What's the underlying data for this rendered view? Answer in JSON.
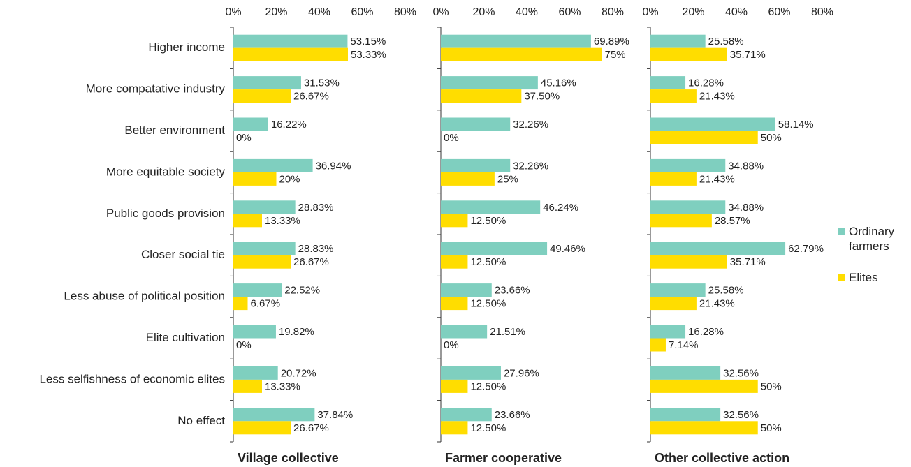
{
  "chart_data": [
    {
      "type": "bar",
      "orientation": "horizontal",
      "title": "Village collective",
      "categories": [
        "Higher income",
        "More compatative industry",
        "Better environment",
        "More equitable society",
        "Public goods provision",
        "Closer social tie",
        "Less abuse of political position",
        "Elite cultivation",
        "Less selfishness of economic elites",
        "No effect"
      ],
      "xlim": [
        0,
        80
      ],
      "xticks": [
        {
          "value": 0,
          "label": "0%"
        },
        {
          "value": 20,
          "label": "20%"
        },
        {
          "value": 40,
          "label": "40%"
        },
        {
          "value": 60,
          "label": "60%"
        },
        {
          "value": 80,
          "label": "80%"
        }
      ],
      "series": [
        {
          "name": "Ordinary farmers",
          "color": "#7fcfbf",
          "values": [
            53.15,
            31.53,
            16.22,
            36.94,
            28.83,
            28.83,
            22.52,
            19.82,
            20.72,
            37.84
          ],
          "value_labels": [
            "53.15%",
            "31.53%",
            "16.22%",
            "36.94%",
            "28.83%",
            "28.83%",
            "22.52%",
            "19.82%",
            "20.72%",
            "37.84%"
          ]
        },
        {
          "name": "Elites",
          "color": "#ffdd00",
          "values": [
            53.33,
            26.67,
            0,
            20,
            13.33,
            26.67,
            6.67,
            0,
            13.33,
            26.67
          ],
          "value_labels": [
            "53.33%",
            "26.67%",
            "0%",
            "20%",
            "13.33%",
            "26.67%",
            "6.67%",
            "0%",
            "13.33%",
            "26.67%"
          ]
        }
      ]
    },
    {
      "type": "bar",
      "orientation": "horizontal",
      "title": "Farmer cooperative",
      "xlim": [
        0,
        80
      ],
      "xticks": [
        {
          "value": 0,
          "label": "0%"
        },
        {
          "value": 20,
          "label": "20%"
        },
        {
          "value": 40,
          "label": "40%"
        },
        {
          "value": 60,
          "label": "60%"
        },
        {
          "value": 80,
          "label": "80%"
        }
      ],
      "series": [
        {
          "color": "#7fcfbf",
          "values": [
            69.89,
            45.16,
            32.26,
            32.26,
            46.24,
            49.46,
            23.66,
            21.51,
            27.96,
            23.66
          ],
          "value_labels": [
            "69.89%",
            "45.16%",
            "32.26%",
            "32.26%",
            "46.24%",
            "49.46%",
            "23.66%",
            "21.51%",
            "27.96%",
            "23.66%"
          ]
        },
        {
          "color": "#ffdd00",
          "values": [
            75,
            37.5,
            0,
            25,
            12.5,
            12.5,
            12.5,
            0,
            12.5,
            12.5
          ],
          "value_labels": [
            "75%",
            "37.50%",
            "0%",
            "25%",
            "12.50%",
            "12.50%",
            "12.50%",
            "0%",
            "12.50%",
            "12.50%"
          ]
        }
      ]
    },
    {
      "type": "bar",
      "orientation": "horizontal",
      "title": "Other collective action",
      "xlim": [
        0,
        80
      ],
      "xticks": [
        {
          "value": 0,
          "label": "0%"
        },
        {
          "value": 20,
          "label": "20%"
        },
        {
          "value": 40,
          "label": "40%"
        },
        {
          "value": 60,
          "label": "60%"
        },
        {
          "value": 80,
          "label": "80%"
        }
      ],
      "series": [
        {
          "color": "#7fcfbf",
          "values": [
            25.58,
            16.28,
            58.14,
            34.88,
            34.88,
            62.79,
            25.58,
            16.28,
            32.56,
            32.56
          ],
          "value_labels": [
            "25.58%",
            "16.28%",
            "58.14%",
            "34.88%",
            "34.88%",
            "62.79%",
            "25.58%",
            "16.28%",
            "32.56%",
            "32.56%"
          ]
        },
        {
          "color": "#ffdd00",
          "values": [
            35.71,
            21.43,
            50,
            21.43,
            28.57,
            35.71,
            21.43,
            7.14,
            50,
            50
          ],
          "value_labels": [
            "35.71%",
            "21.43%",
            "50%",
            "21.43%",
            "28.57%",
            "35.71%",
            "21.43%",
            "7.14%",
            "50%",
            "50%"
          ]
        }
      ]
    }
  ]
}
